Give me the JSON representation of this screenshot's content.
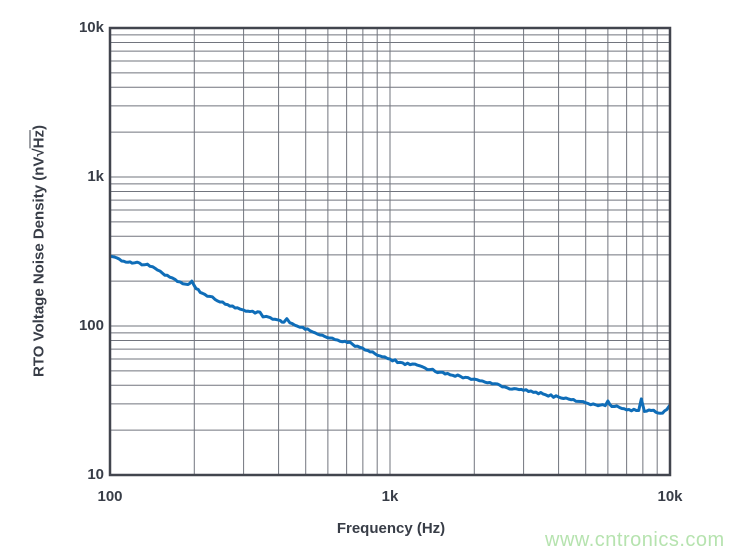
{
  "watermark": {
    "text": "www.cntronics.com",
    "color": "#b6e3af"
  },
  "chart_data": {
    "type": "line",
    "title": "",
    "xlabel": "Frequency (Hz)",
    "ylabel": "RTO Voltage Noise Density (nV√Hz)",
    "ylabel_parts": {
      "prefix": "RTO Voltage Noise Density (nV",
      "radical": "√",
      "radicand": "Hz",
      "suffix": ")"
    },
    "x_scale": "log",
    "y_scale": "log",
    "xlim": [
      100,
      10000
    ],
    "ylim": [
      10,
      10000
    ],
    "grid": "log-decades-with-minor-lines",
    "legend": "none",
    "x_ticks": [
      {
        "value": 100,
        "label": "100"
      },
      {
        "value": 1000,
        "label": "1k"
      },
      {
        "value": 10000,
        "label": "10k"
      }
    ],
    "y_ticks": [
      {
        "value": 10,
        "label": "10"
      },
      {
        "value": 100,
        "label": "100"
      },
      {
        "value": 1000,
        "label": "1k"
      },
      {
        "value": 10000,
        "label": "10k"
      }
    ],
    "colors": {
      "line": "#0f6db8",
      "grid": "#72757e",
      "frame": "#42454e",
      "text": "#383d47"
    },
    "series": [
      {
        "name": "RTO voltage noise density",
        "points": [
          [
            100,
            296
          ],
          [
            104,
            290
          ],
          [
            108,
            281
          ],
          [
            112,
            272
          ],
          [
            116,
            268
          ],
          [
            120,
            264
          ],
          [
            125,
            268
          ],
          [
            130,
            257
          ],
          [
            136,
            260
          ],
          [
            142,
            250
          ],
          [
            148,
            237
          ],
          [
            154,
            226
          ],
          [
            160,
            219
          ],
          [
            167,
            210
          ],
          [
            174,
            199
          ],
          [
            182,
            192
          ],
          [
            190,
            190
          ],
          [
            196,
            200
          ],
          [
            203,
            178
          ],
          [
            210,
            168
          ],
          [
            218,
            163
          ],
          [
            227,
            158
          ],
          [
            237,
            151
          ],
          [
            247,
            145
          ],
          [
            258,
            140
          ],
          [
            268,
            136
          ],
          [
            280,
            132
          ],
          [
            291,
            130
          ],
          [
            300,
            128
          ],
          [
            316,
            125
          ],
          [
            330,
            122
          ],
          [
            343,
            124
          ],
          [
            352,
            115
          ],
          [
            362,
            116
          ],
          [
            373,
            114
          ],
          [
            388,
            111
          ],
          [
            405,
            109
          ],
          [
            418,
            106
          ],
          [
            428,
            112
          ],
          [
            439,
            105
          ],
          [
            458,
            101
          ],
          [
            477,
            98
          ],
          [
            498,
            95
          ],
          [
            518,
            93
          ],
          [
            540,
            90
          ],
          [
            562,
            87
          ],
          [
            585,
            85
          ],
          [
            610,
            83
          ],
          [
            636,
            81
          ],
          [
            663,
            79
          ],
          [
            690,
            79
          ],
          [
            720,
            78
          ],
          [
            750,
            73
          ],
          [
            780,
            72
          ],
          [
            815,
            69
          ],
          [
            850,
            67
          ],
          [
            885,
            65
          ],
          [
            920,
            63
          ],
          [
            958,
            62
          ],
          [
            1000,
            60
          ],
          [
            1086,
            57
          ],
          [
            1180,
            55
          ],
          [
            1280,
            54
          ],
          [
            1390,
            51
          ],
          [
            1510,
            49
          ],
          [
            1640,
            47
          ],
          [
            1782,
            46
          ],
          [
            1900,
            45
          ],
          [
            2000,
            44
          ],
          [
            2185,
            42
          ],
          [
            2370,
            41
          ],
          [
            2572,
            39
          ],
          [
            2780,
            38
          ],
          [
            3000,
            37
          ],
          [
            3320,
            36
          ],
          [
            3600,
            34.5
          ],
          [
            4000,
            33.4
          ],
          [
            4430,
            32
          ],
          [
            4700,
            31.2
          ],
          [
            5000,
            30.5
          ],
          [
            5430,
            29.6
          ],
          [
            5870,
            29.2
          ],
          [
            6000,
            31.4
          ],
          [
            6200,
            28.8
          ],
          [
            6600,
            28.4
          ],
          [
            7140,
            27.5
          ],
          [
            7730,
            27.1
          ],
          [
            7900,
            32.4
          ],
          [
            8100,
            26.7
          ],
          [
            8560,
            27.1
          ],
          [
            8900,
            26.4
          ],
          [
            9400,
            26
          ],
          [
            9740,
            27.5
          ],
          [
            10000,
            29.5
          ]
        ]
      }
    ]
  }
}
